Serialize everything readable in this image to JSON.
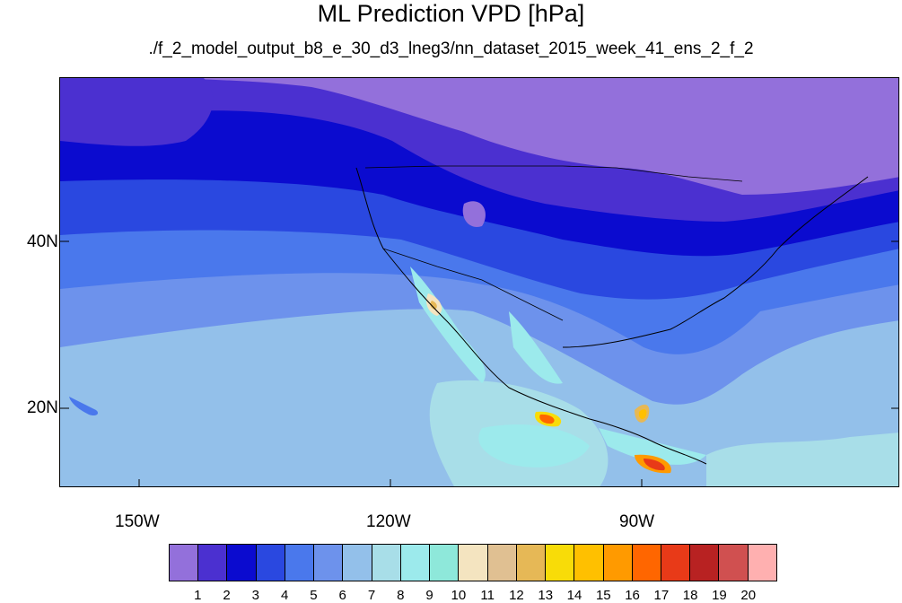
{
  "title": "ML Prediction VPD [hPa]",
  "subtitle": "./f_2_model_output_b8_e_30_d3_lneg3/nn_dataset_2015_week_41_ens_2_f_2",
  "map": {
    "lat_labels": [
      "40N",
      "20N"
    ],
    "lon_labels": [
      "150W",
      "120W",
      "90W"
    ]
  },
  "colorbar": {
    "colors": [
      "#9370db",
      "#4b30d0",
      "#0b0bcf",
      "#2a48e0",
      "#4a78ec",
      "#6d92ec",
      "#93c0ea",
      "#a8dee8",
      "#9ceaec",
      "#8ee8da",
      "#f4e4c0",
      "#e0c092",
      "#e6b856",
      "#f8dc08",
      "#ffc000",
      "#ff9a00",
      "#ff6600",
      "#e83a18",
      "#b82222",
      "#d05050",
      "#ffb0b0"
    ],
    "labels": [
      "1",
      "2",
      "3",
      "4",
      "5",
      "6",
      "7",
      "8",
      "9",
      "10",
      "11",
      "12",
      "13",
      "14",
      "15",
      "16",
      "17",
      "18",
      "19",
      "20"
    ]
  }
}
